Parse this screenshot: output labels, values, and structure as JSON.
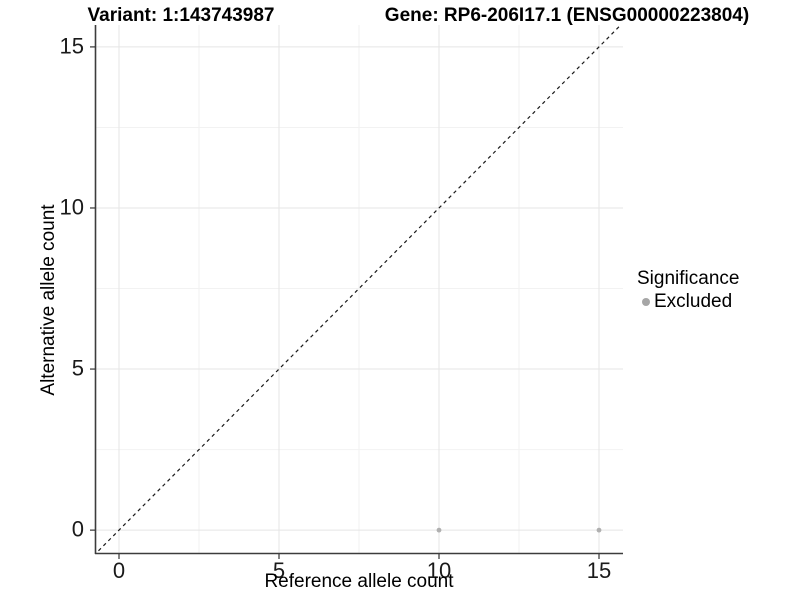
{
  "titles": {
    "variant": "Variant: 1:143743987",
    "gene": "Gene: RP6-206I17.1 (ENSG00000223804)"
  },
  "axes": {
    "x_label": "Reference allele count",
    "y_label": "Alternative allele count"
  },
  "legend": {
    "title": "Significance",
    "items": [
      {
        "label": "Excluded",
        "color": "#a6a6a6"
      }
    ]
  },
  "colors": {
    "background": "#ffffff",
    "axis_line": "#3c3c3c",
    "tick_mark": "#333333",
    "major_grid": "#e5e5e5",
    "minor_grid": "#f2f2f2",
    "point": "#b0b0b0",
    "dashed_line": "#1a1a1a"
  },
  "chart_data": {
    "type": "scatter",
    "title": "Variant: 1:143743987 | Gene: RP6-206I17.1 (ENSG00000223804)",
    "xlabel": "Reference allele count",
    "ylabel": "Alternative allele count",
    "xlim": [
      -0.75,
      15.75
    ],
    "ylim": [
      -0.71,
      15.68
    ],
    "xticks": [
      0,
      5,
      10,
      15
    ],
    "yticks": [
      0,
      5,
      10,
      15
    ],
    "x_minor": [
      2.5,
      7.5,
      12.5
    ],
    "y_minor": [
      2.5,
      7.5,
      12.5
    ],
    "grid": true,
    "legend_position": "right",
    "abline": {
      "slope": 1,
      "intercept": 0,
      "style": "dashed",
      "color": "#1a1a1a"
    },
    "series": [
      {
        "name": "Excluded",
        "color": "#b0b0b0",
        "point_radius": 2.4,
        "points": [
          {
            "x": 10,
            "y": 0
          },
          {
            "x": 15,
            "y": 0
          }
        ]
      }
    ]
  }
}
